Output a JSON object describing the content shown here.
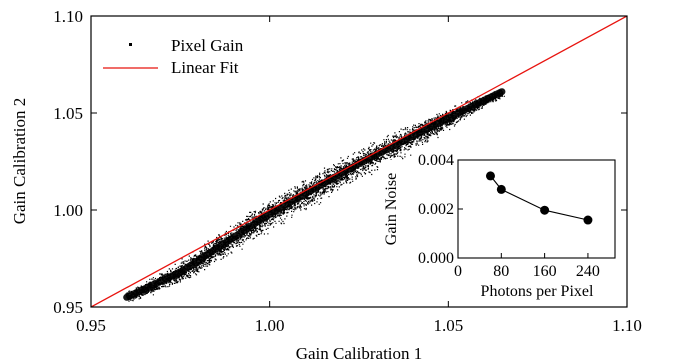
{
  "chart_data": [
    {
      "type": "scatter",
      "xlabel": "Gain Calibration 1",
      "ylabel": "Gain Calibration 2",
      "xlim": [
        0.95,
        1.1
      ],
      "ylim": [
        0.95,
        1.1
      ],
      "x_ticks": [
        "0.95",
        "1.00",
        "1.05",
        "1.10"
      ],
      "y_ticks": [
        "0.95",
        "1.00",
        "1.05",
        "1.10"
      ],
      "grid": false,
      "legend": {
        "placement": "top-left"
      },
      "series": [
        {
          "name": "Pixel Gain",
          "kind": "scatter-cloud",
          "color": "#000000",
          "spine": [
            [
              0.96,
              0.955
            ],
            [
              0.975,
              0.968
            ],
            [
              1.0,
              0.998
            ],
            [
              1.025,
              1.024
            ],
            [
              1.04,
              1.038
            ],
            [
              1.055,
              1.052
            ],
            [
              1.065,
              1.061
            ]
          ]
        },
        {
          "name": "Linear Fit",
          "kind": "line",
          "color": "#e8140f",
          "x": [
            0.95,
            1.1
          ],
          "y": [
            0.95,
            1.1
          ]
        }
      ]
    },
    {
      "type": "line",
      "xlabel": "Photons per Pixel",
      "ylabel": "Gain Noise",
      "xlim": [
        0,
        290
      ],
      "ylim": [
        0.0,
        0.004
      ],
      "x_ticks": [
        "0",
        "80",
        "160",
        "240"
      ],
      "y_ticks": [
        "0.000",
        "0.002",
        "0.004"
      ],
      "series": [
        {
          "color": "#000000",
          "x": [
            60,
            80,
            160,
            240
          ],
          "y": [
            0.00335,
            0.0028,
            0.00195,
            0.00155
          ]
        }
      ]
    }
  ]
}
